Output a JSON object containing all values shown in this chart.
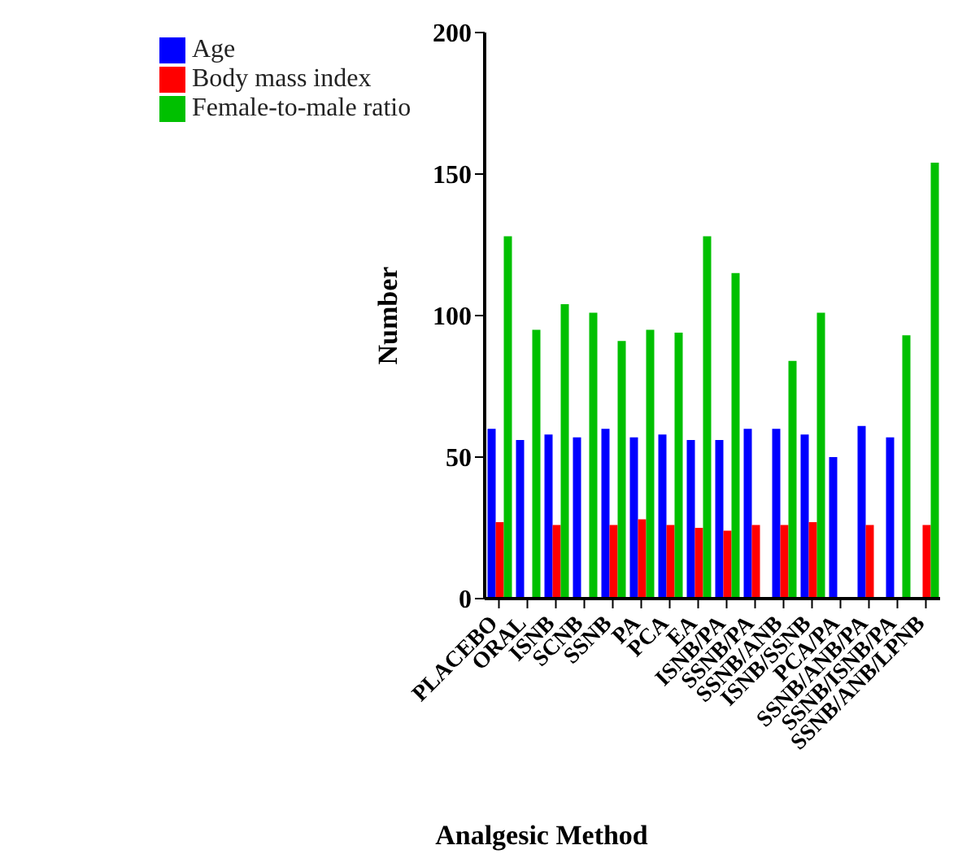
{
  "chart_data": {
    "type": "bar",
    "xlabel": "Analgesic Method",
    "ylabel": "Number",
    "categories": [
      "PLACEBO",
      "ORAL",
      "ISNB",
      "SCNB",
      "SSNB",
      "PA",
      "PCA",
      "EA",
      "ISNB/PA",
      "SSNB/PA",
      "SSNB/ANB",
      "ISNB/SSNB",
      "PCA/PA",
      "SSNB/ANB/PA",
      "SSNB/ISNB/PA",
      "SSNB/ANB/LPNB"
    ],
    "series": [
      {
        "name": "Age",
        "color": "#0000ff",
        "values": [
          60,
          56,
          58,
          57,
          60,
          57,
          58,
          56,
          56,
          60,
          60,
          58,
          50,
          61,
          57,
          null
        ]
      },
      {
        "name": "Body mass index",
        "color": "#ff0000",
        "values": [
          27,
          null,
          26,
          null,
          26,
          28,
          26,
          25,
          24,
          26,
          26,
          27,
          null,
          26,
          null,
          26
        ]
      },
      {
        "name": "Female-to-male ratio",
        "color": "#00c000",
        "values": [
          128,
          95,
          104,
          101,
          91,
          95,
          94,
          128,
          115,
          null,
          84,
          101,
          null,
          null,
          93,
          154
        ]
      }
    ],
    "ylim": [
      0,
      200
    ],
    "yticks": [
      0,
      50,
      100,
      150,
      200
    ],
    "grid": false,
    "legend": "top left"
  }
}
